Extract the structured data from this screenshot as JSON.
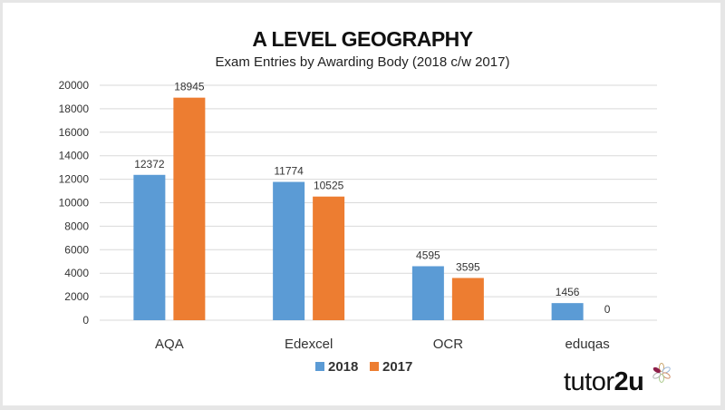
{
  "chart_data": {
    "type": "bar",
    "title": "A LEVEL GEOGRAPHY",
    "subtitle": "Exam Entries by Awarding Body (2018 c/w 2017)",
    "categories": [
      "AQA",
      "Edexcel",
      "OCR",
      "eduqas"
    ],
    "series": [
      {
        "name": "2018",
        "color": "#5b9bd5",
        "values": [
          12372,
          11774,
          4595,
          1456
        ]
      },
      {
        "name": "2017",
        "color": "#ed7d31",
        "values": [
          18945,
          10525,
          3595,
          0
        ]
      }
    ],
    "ylim": [
      0,
      20000
    ],
    "yticks": [
      0,
      2000,
      4000,
      6000,
      8000,
      10000,
      12000,
      14000,
      16000,
      18000,
      20000
    ],
    "grid": true,
    "legend": "bottom",
    "xlabel": "",
    "ylabel": ""
  },
  "logo": {
    "text_light": "tutor",
    "text_bold": "2u"
  }
}
